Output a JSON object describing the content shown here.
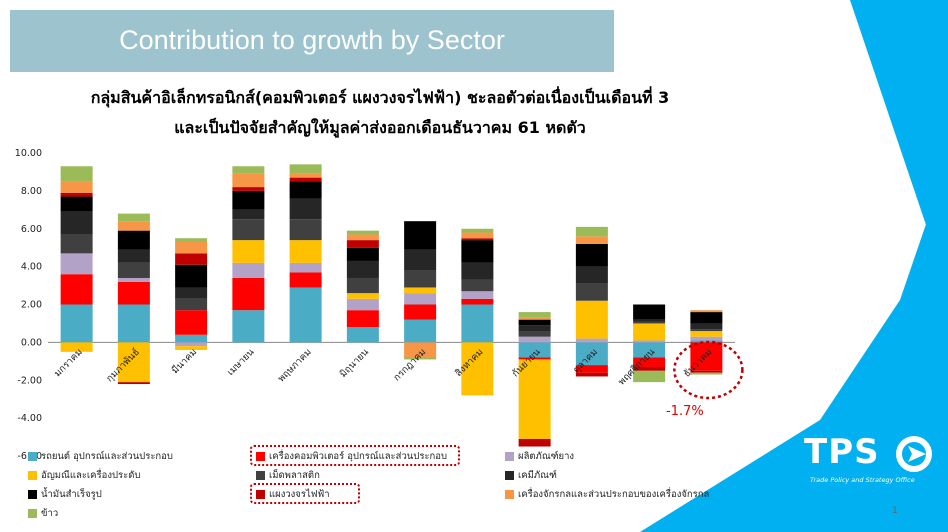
{
  "header": {
    "title": "Contribution to growth by Sector",
    "subtitle_line1": "กลุ่มสินค้าอิเล็กทรอนิกส์(คอมพิวเตอร์ แผงวงจรไฟฟ้า) ชะลอตัวต่อเนื่องเป็นเดือนที่ 3",
    "subtitle_line2": "และเป็นปัจจัยสำคัญให้มูลค่าส่งออกเดือนธันวาคม 61 หดตัว"
  },
  "logo": {
    "text": "TPS",
    "tagline": "Trade Policy and Strategy Office"
  },
  "page_number": "1",
  "annotation": {
    "text": "-1.7%",
    "color": "#e00000"
  },
  "colors": {
    "auto": "#4bacc6",
    "computer": "#ff0000",
    "rubber": "#b3a2c7",
    "jewelry": "#ffc000",
    "plastic": "#404040",
    "chemical": "#262626",
    "oil": "#000000",
    "circuit": "#c00000",
    "machinery": "#f79646",
    "rice": "#9bbb59",
    "highlight": "#c00000",
    "corner": "#00b0f0"
  },
  "chart_data": {
    "type": "bar",
    "stacked": true,
    "categories": [
      "มกราคม",
      "กุมภาพันธ์",
      "มีนาคม",
      "เมษายน",
      "พฤษภาคม",
      "มิถุนายน",
      "กรกฎาคม",
      "สิงหาคม",
      "กันยายน",
      "ตุลาคม",
      "พฤศจิกายน",
      "ธันวาคม"
    ],
    "ylim": [
      -6,
      10
    ],
    "yticks": [
      "10.00",
      "8.00",
      "6.00",
      "4.00",
      "2.00",
      "0.00",
      "-2.00",
      "-4.00",
      "-6.00"
    ],
    "series": [
      {
        "name": "รถยนต์ อุปกรณ์และส่วนประกอบ",
        "key": "auto",
        "values": [
          2.0,
          2.0,
          0.4,
          1.7,
          2.9,
          0.8,
          1.2,
          2.0,
          -0.8,
          -1.2,
          -0.8,
          0.1
        ]
      },
      {
        "name": "เครื่องคอมพิวเตอร์ อุปกรณ์และส่วนประกอบ",
        "key": "computer",
        "values": [
          1.6,
          1.2,
          1.3,
          1.7,
          0.8,
          0.9,
          0.8,
          0.3,
          -0.1,
          -0.4,
          -0.5,
          -1.5
        ]
      },
      {
        "name": "ผลิตภัณฑ์ยาง",
        "key": "rubber",
        "values": [
          1.1,
          0.2,
          -0.2,
          0.8,
          0.5,
          0.6,
          0.6,
          0.4,
          0.3,
          0.2,
          0.1,
          0.2
        ]
      },
      {
        "name": "อัญมณีและเครื่องประดับ",
        "key": "jewelry",
        "values": [
          -0.5,
          -2.1,
          -0.2,
          1.2,
          1.2,
          0.3,
          0.3,
          -2.8,
          -4.2,
          2.0,
          0.9,
          0.3
        ]
      },
      {
        "name": "เม็ดพลาสติก",
        "key": "plastic",
        "values": [
          1.0,
          0.8,
          0.6,
          1.1,
          1.1,
          0.8,
          0.9,
          0.6,
          0.3,
          0.9,
          0.1,
          0.1
        ]
      },
      {
        "name": "เคมีภัณฑ์",
        "key": "chemical",
        "values": [
          1.2,
          0.7,
          0.6,
          0.5,
          1.1,
          0.9,
          1.1,
          0.9,
          0.3,
          0.9,
          0.1,
          0.3
        ]
      },
      {
        "name": "น้ำมันสำเร็จรูป",
        "key": "oil",
        "values": [
          0.8,
          1.0,
          1.2,
          1.0,
          0.9,
          0.7,
          1.5,
          1.2,
          0.3,
          1.2,
          0.8,
          0.6
        ]
      },
      {
        "name": "แผงวงจรไฟฟ้า",
        "key": "circuit",
        "values": [
          0.2,
          -0.1,
          0.6,
          0.2,
          0.2,
          0.4,
          0.0,
          0.1,
          -0.4,
          -0.2,
          -0.2,
          -0.1
        ]
      },
      {
        "name": "เครื่องจักรกลและส่วนประกอบของเครื่องจักรกล",
        "key": "machinery",
        "values": [
          0.6,
          0.5,
          0.6,
          0.7,
          0.2,
          0.3,
          -0.8,
          0.3,
          0.1,
          0.4,
          0.0,
          0.1
        ]
      },
      {
        "name": "ข้าว",
        "key": "rice",
        "values": [
          0.8,
          0.4,
          0.2,
          0.4,
          0.5,
          0.2,
          -0.1,
          0.2,
          0.3,
          0.5,
          -0.6,
          -0.1
        ]
      }
    ]
  }
}
